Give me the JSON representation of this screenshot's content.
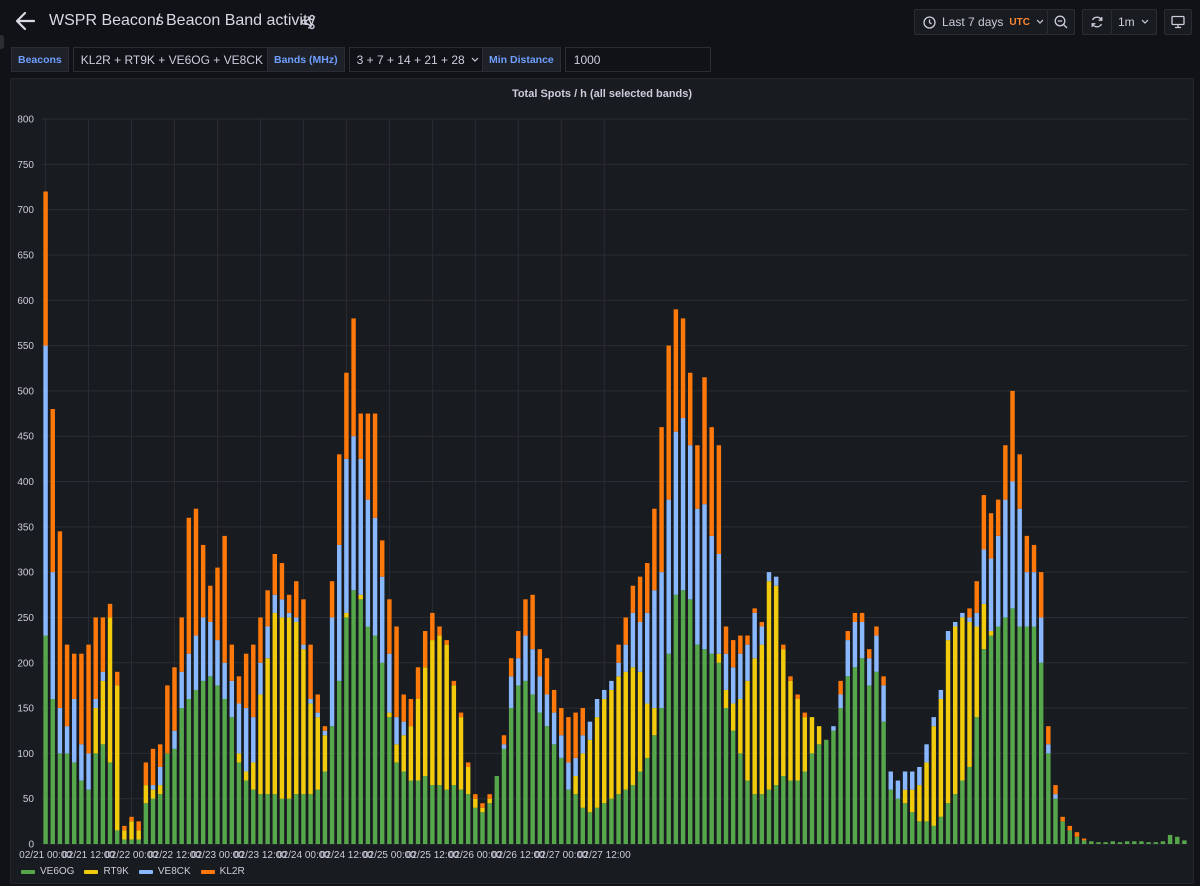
{
  "breadcrumb": {
    "root": "WSPR Beacons",
    "separator": "/",
    "page": "Beacon Band activity"
  },
  "toolbar": {
    "time_range": "Last 7 days",
    "timezone": "UTC",
    "refresh_interval": "1m"
  },
  "variables": [
    {
      "label": "Beacons",
      "value": "KL2R + RT9K + VE6OG + VE8CK",
      "kind": "select"
    },
    {
      "label": "Bands (MHz)",
      "value": "3 + 7 + 14 + 21 + 28",
      "kind": "select"
    },
    {
      "label": "Min Distance",
      "value": "1000",
      "kind": "input"
    }
  ],
  "icons": [
    "arrow-left-icon",
    "share-icon",
    "clock-icon",
    "zoom-out-icon",
    "refresh-icon",
    "chevron-down-icon",
    "tv-icon"
  ],
  "colors": {
    "background": "#111217",
    "panel": "#181b1f",
    "VE6OG": "#56a64b",
    "RT9K": "#f2cc0c",
    "VE8CK": "#8ab8ff",
    "KL2R": "#ff780a",
    "accent_label": "#6e9fff",
    "timezone": "#ff8833"
  },
  "chart_data": {
    "type": "bar",
    "stacked": true,
    "title": "Total Spots / h (all selected bands)",
    "ylim": [
      0,
      800
    ],
    "yticks": [
      "0",
      "50",
      "100",
      "150",
      "200",
      "250",
      "300",
      "350",
      "400",
      "450",
      "500",
      "550",
      "600",
      "650",
      "700",
      "750",
      "800"
    ],
    "xticks": [
      "02/21 00:00",
      "02/21 12:00",
      "02/22 00:00",
      "02/22 12:00",
      "02/23 00:00",
      "02/23 12:00",
      "02/24 00:00",
      "02/24 12:00",
      "02/25 00:00",
      "02/25 12:00",
      "02/26 00:00",
      "02/26 12:00",
      "02/27 00:00",
      "02/27 12:00"
    ],
    "x_interval_hours": 2,
    "grid": true,
    "legend_position": "bottom-left",
    "series": [
      {
        "name": "VE6OG",
        "color": "#56a64b",
        "values": [
          230,
          160,
          100,
          100,
          90,
          70,
          60,
          100,
          110,
          90,
          15,
          5,
          5,
          5,
          45,
          50,
          55,
          100,
          105,
          150,
          160,
          170,
          180,
          185,
          175,
          160,
          140,
          90,
          70,
          60,
          55,
          55,
          55,
          50,
          50,
          55,
          55,
          55,
          60,
          80,
          130,
          180,
          250,
          280,
          270,
          240,
          230,
          200,
          140,
          90,
          80,
          70,
          70,
          75,
          65,
          65,
          60,
          65,
          60,
          55,
          40,
          35,
          45,
          75,
          105,
          150,
          175,
          180,
          165,
          145,
          130,
          110,
          95,
          60,
          55,
          40,
          35,
          40,
          45,
          50,
          55,
          60,
          65,
          80,
          95,
          120,
          150,
          210,
          275,
          280,
          270,
          220,
          215,
          210,
          200,
          150,
          125,
          100,
          70,
          55,
          55,
          60,
          65,
          75,
          70,
          70,
          80,
          100,
          110,
          115,
          125,
          150,
          185,
          195,
          205,
          175,
          190,
          135,
          60,
          50,
          45,
          35,
          25,
          25,
          20,
          30,
          45,
          55,
          70,
          85,
          140,
          215,
          230,
          240,
          250,
          260,
          240,
          240,
          240,
          200,
          100,
          50,
          25,
          15,
          8,
          4,
          3,
          2,
          2,
          3,
          2,
          3,
          3,
          3,
          2,
          2,
          3,
          10,
          8,
          4
        ]
      },
      {
        "name": "RT9K",
        "color": "#f2cc0c",
        "values": [
          0,
          0,
          0,
          0,
          0,
          0,
          0,
          50,
          70,
          160,
          160,
          10,
          20,
          10,
          20,
          10,
          10,
          0,
          0,
          0,
          0,
          0,
          0,
          0,
          0,
          0,
          0,
          10,
          10,
          30,
          110,
          150,
          200,
          200,
          200,
          190,
          160,
          100,
          80,
          40,
          0,
          0,
          5,
          0,
          5,
          0,
          0,
          0,
          5,
          20,
          40,
          60,
          90,
          120,
          160,
          165,
          160,
          110,
          80,
          30,
          10,
          5,
          5,
          0,
          0,
          0,
          0,
          0,
          0,
          0,
          0,
          0,
          0,
          0,
          20,
          60,
          80,
          100,
          115,
          120,
          130,
          130,
          130,
          110,
          60,
          30,
          0,
          0,
          0,
          0,
          0,
          0,
          0,
          0,
          10,
          20,
          30,
          60,
          110,
          150,
          165,
          230,
          220,
          140,
          110,
          90,
          60,
          40,
          20,
          0,
          0,
          0,
          0,
          0,
          0,
          0,
          0,
          0,
          0,
          0,
          15,
          25,
          40,
          65,
          110,
          130,
          180,
          185,
          180,
          160,
          100,
          50,
          5,
          0,
          0,
          0,
          0,
          0,
          0,
          0,
          0,
          0,
          0,
          0,
          0,
          0,
          0,
          0,
          0,
          0,
          0,
          0,
          0,
          0,
          0,
          0,
          0,
          0,
          0,
          0
        ]
      },
      {
        "name": "VE8CK",
        "color": "#8ab8ff",
        "values": [
          320,
          140,
          50,
          30,
          70,
          40,
          40,
          10,
          10,
          0,
          0,
          0,
          0,
          0,
          0,
          5,
          20,
          0,
          20,
          40,
          50,
          60,
          70,
          60,
          50,
          40,
          40,
          55,
          70,
          50,
          35,
          35,
          20,
          20,
          5,
          5,
          5,
          5,
          5,
          5,
          120,
          150,
          170,
          170,
          150,
          140,
          130,
          95,
          65,
          30,
          15,
          0,
          0,
          0,
          0,
          0,
          0,
          0,
          0,
          0,
          0,
          0,
          0,
          0,
          5,
          35,
          30,
          50,
          50,
          40,
          35,
          35,
          25,
          30,
          20,
          20,
          20,
          20,
          10,
          10,
          15,
          30,
          60,
          55,
          100,
          130,
          150,
          170,
          180,
          190,
          170,
          150,
          160,
          130,
          110,
          40,
          40,
          50,
          40,
          50,
          20,
          10,
          10,
          0,
          0,
          0,
          0,
          0,
          0,
          0,
          5,
          15,
          40,
          50,
          40,
          30,
          40,
          40,
          20,
          20,
          20,
          20,
          20,
          20,
          10,
          10,
          10,
          5,
          5,
          5,
          15,
          60,
          80,
          100,
          130,
          140,
          130,
          60,
          60,
          50,
          10,
          5,
          0,
          0,
          0,
          0,
          0,
          0,
          0,
          0,
          0,
          0,
          0,
          0,
          0,
          0,
          0,
          0,
          0,
          0
        ]
      },
      {
        "name": "KL2R",
        "color": "#ff780a",
        "values": [
          170,
          180,
          195,
          90,
          50,
          100,
          120,
          90,
          60,
          15,
          15,
          5,
          5,
          10,
          25,
          40,
          25,
          75,
          70,
          60,
          150,
          140,
          80,
          40,
          80,
          140,
          40,
          30,
          60,
          80,
          50,
          40,
          45,
          40,
          20,
          40,
          50,
          60,
          20,
          5,
          40,
          100,
          95,
          130,
          50,
          95,
          115,
          40,
          60,
          100,
          30,
          30,
          35,
          40,
          30,
          10,
          5,
          5,
          5,
          5,
          5,
          5,
          5,
          0,
          10,
          20,
          30,
          40,
          60,
          30,
          40,
          25,
          30,
          50,
          50,
          30,
          0,
          0,
          0,
          0,
          20,
          30,
          30,
          50,
          55,
          90,
          160,
          170,
          135,
          110,
          80,
          70,
          140,
          120,
          120,
          30,
          30,
          20,
          10,
          5,
          5,
          0,
          0,
          5,
          5,
          5,
          5,
          0,
          0,
          0,
          0,
          15,
          10,
          10,
          10,
          10,
          10,
          10,
          0,
          0,
          0,
          0,
          0,
          0,
          0,
          0,
          0,
          0,
          0,
          10,
          35,
          60,
          50,
          40,
          60,
          100,
          60,
          40,
          30,
          50,
          20,
          10,
          5,
          5,
          5,
          2,
          0,
          0,
          0,
          0,
          0,
          0,
          0,
          0,
          0,
          0,
          0,
          0,
          0,
          0
        ]
      }
    ]
  }
}
